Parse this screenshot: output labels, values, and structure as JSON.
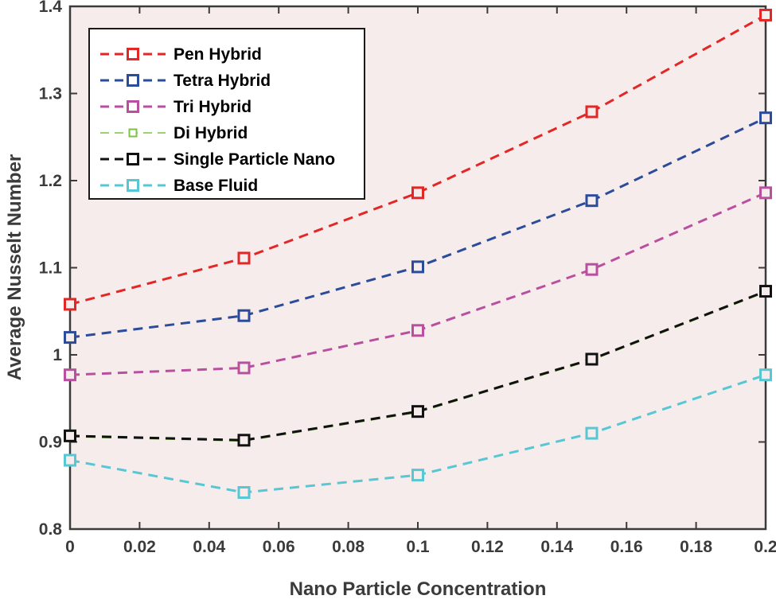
{
  "chart_data": {
    "type": "line",
    "title": "",
    "xlabel": "Nano Particle Concentration",
    "ylabel": "Average Nusselt Number",
    "xlim": [
      0,
      0.2
    ],
    "ylim": [
      0.8,
      1.4
    ],
    "x": [
      0,
      0.05,
      0.1,
      0.15,
      0.2
    ],
    "x_ticks": [
      0,
      0.02,
      0.04,
      0.06,
      0.08,
      0.1,
      0.12,
      0.14,
      0.16,
      0.18,
      0.2
    ],
    "x_tick_labels": [
      "0",
      "0.02",
      "0.04",
      "0.06",
      "0.08",
      "0.1",
      "0.12",
      "0.14",
      "0.16",
      "0.18",
      "0.2"
    ],
    "y_ticks": [
      0.8,
      0.9,
      1.0,
      1.1,
      1.2,
      1.3,
      1.4
    ],
    "y_tick_labels": [
      "0.8",
      "0.9",
      "1",
      "1.1",
      "1.2",
      "1.3",
      "1.4"
    ],
    "grid": false,
    "line_style": "dashed",
    "marker": "square",
    "legend_position": "top-left",
    "plot_bg": "#f7ecec",
    "axis_color": "#3b3b3b",
    "series": [
      {
        "name": "Pen Hybrid",
        "color": "#e32726",
        "line_width": 3,
        "marker_size": 13,
        "values": [
          1.058,
          1.111,
          1.186,
          1.279,
          1.39
        ]
      },
      {
        "name": "Tetra Hybrid",
        "color": "#2b4b9b",
        "line_width": 3,
        "marker_size": 13,
        "values": [
          1.02,
          1.045,
          1.101,
          1.177,
          1.272
        ]
      },
      {
        "name": "Tri Hybrid",
        "color": "#b8509f",
        "line_width": 3,
        "marker_size": 13,
        "values": [
          0.977,
          0.985,
          1.028,
          1.098,
          1.186
        ]
      },
      {
        "name": "Di Hybrid",
        "color": "#7dc242",
        "line_width": 1.6,
        "marker_size": 9,
        "values": [
          0.906,
          0.901,
          0.934,
          0.994,
          1.072
        ]
      },
      {
        "name": "Single Particle Nano",
        "color": "#111111",
        "line_width": 3,
        "marker_size": 13,
        "values": [
          0.907,
          0.902,
          0.935,
          0.995,
          1.073
        ]
      },
      {
        "name": "Base Fluid",
        "color": "#57c7d4",
        "line_width": 3,
        "marker_size": 13,
        "values": [
          0.879,
          0.842,
          0.862,
          0.91,
          0.977
        ]
      }
    ]
  }
}
